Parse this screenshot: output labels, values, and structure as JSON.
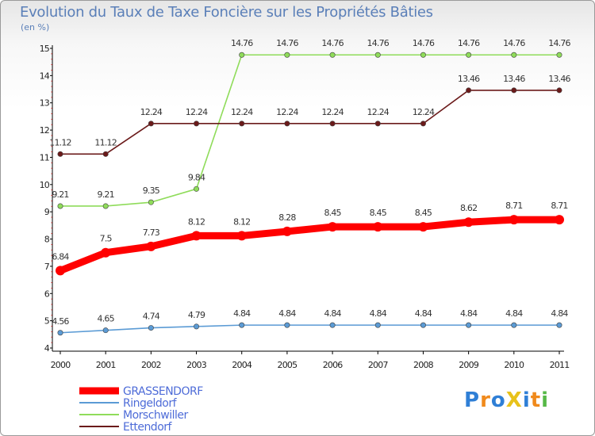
{
  "chart_data": {
    "type": "line",
    "title": "Evolution du Taux de Taxe Foncière sur les Propriétés Bâties",
    "ylabel": "(en %)",
    "xlabel": "",
    "categories": [
      "2000",
      "2001",
      "2002",
      "2003",
      "2004",
      "2005",
      "2006",
      "2007",
      "2008",
      "2009",
      "2010",
      "2011"
    ],
    "ylim": [
      4,
      15
    ],
    "yticks": [
      "4",
      "5",
      "6",
      "7",
      "8",
      "9",
      "10",
      "11",
      "12",
      "13",
      "14",
      "15"
    ],
    "grid": false,
    "legend_position": "bottom-left",
    "series": [
      {
        "name": "GRASSENDORF",
        "color": "#ff0000",
        "values": [
          6.84,
          7.5,
          7.73,
          8.12,
          8.12,
          8.28,
          8.45,
          8.45,
          8.45,
          8.62,
          8.71,
          8.71
        ],
        "labels": [
          "6.84",
          "7.5",
          "7.73",
          "8.12",
          "8.12",
          "8.28",
          "8.45",
          "8.45",
          "8.45",
          "8.62",
          "8.71",
          "8.71"
        ],
        "emphasis": true
      },
      {
        "name": "Ringeldorf",
        "color": "#5b9bd5",
        "values": [
          4.56,
          4.65,
          4.74,
          4.79,
          4.84,
          4.84,
          4.84,
          4.84,
          4.84,
          4.84,
          4.84,
          4.84
        ],
        "labels": [
          "4.56",
          "4.65",
          "4.74",
          "4.79",
          "4.84",
          "4.84",
          "4.84",
          "4.84",
          "4.84",
          "4.84",
          "4.84",
          "4.84"
        ],
        "emphasis": false
      },
      {
        "name": "Morschwiller",
        "color": "#8fdc5a",
        "values": [
          9.21,
          9.21,
          9.35,
          9.84,
          14.76,
          14.76,
          14.76,
          14.76,
          14.76,
          14.76,
          14.76,
          14.76
        ],
        "labels": [
          "9.21",
          "9.21",
          "9.35",
          "9.84",
          "14.76",
          "14.76",
          "14.76",
          "14.76",
          "14.76",
          "14.76",
          "14.76",
          "14.76"
        ],
        "emphasis": false
      },
      {
        "name": "Ettendorf",
        "color": "#6b1a1a",
        "values": [
          11.12,
          11.12,
          12.24,
          12.24,
          12.24,
          12.24,
          12.24,
          12.24,
          12.24,
          13.46,
          13.46,
          13.46
        ],
        "labels": [
          "11.12",
          "11.12",
          "12.24",
          "12.24",
          "12.24",
          "12.24",
          "12.24",
          "12.24",
          "12.24",
          "13.46",
          "13.46",
          "13.46"
        ],
        "emphasis": false
      }
    ]
  },
  "logo": {
    "text": "ProXiti",
    "letters": [
      {
        "ch": "P",
        "color": "#2f7fd6"
      },
      {
        "ch": "r",
        "color": "#f08a1c"
      },
      {
        "ch": "o",
        "color": "#2f7fd6"
      },
      {
        "ch": "X",
        "color": "#e8c21a"
      },
      {
        "ch": "i",
        "color": "#2f7fd6"
      },
      {
        "ch": "t",
        "color": "#f08a1c"
      },
      {
        "ch": "i",
        "color": "#56b847"
      }
    ]
  }
}
